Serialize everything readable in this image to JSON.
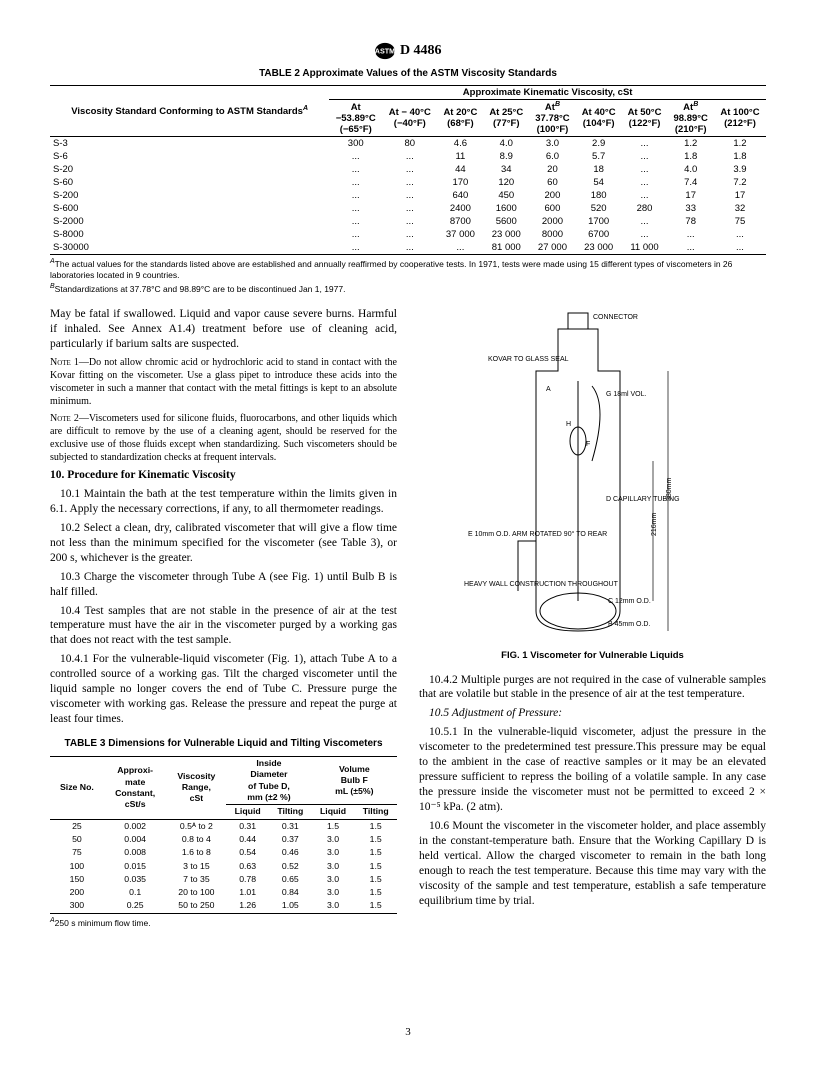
{
  "header": {
    "standard_number": "D 4486"
  },
  "table2": {
    "title": "TABLE 2  Approximate Values of the ASTM Viscosity Standards",
    "spanning_header": "Approximate Kinematic Viscosity, cSt",
    "row_header": "Viscosity Standard Conforming to ASTM Standards",
    "row_header_sup": "A",
    "columns": [
      {
        "line1": "At",
        "line2": "−53.89°C",
        "line3": "(−65°F)"
      },
      {
        "line1": "At − 40°C",
        "line2": "(−40°F)",
        "line3": ""
      },
      {
        "line1": "At 20°C",
        "line2": "(68°F)",
        "line3": ""
      },
      {
        "line1": "At 25°C",
        "line2": "(77°F)",
        "line3": ""
      },
      {
        "line1": "At",
        "sup": "B",
        "line2": "37.78°C",
        "line3": "(100°F)"
      },
      {
        "line1": "At 40°C",
        "line2": "(104°F)",
        "line3": ""
      },
      {
        "line1": "At 50°C",
        "line2": "(122°F)",
        "line3": ""
      },
      {
        "line1": "At",
        "sup": "B",
        "line2": "98.89°C",
        "line3": "(210°F)"
      },
      {
        "line1": "At 100°C",
        "line2": "(212°F)",
        "line3": ""
      }
    ],
    "rows": [
      {
        "label": "S-3",
        "cells": [
          "300",
          "80",
          "4.6",
          "4.0",
          "3.0",
          "2.9",
          "...",
          "1.2",
          "1.2"
        ]
      },
      {
        "label": "S-6",
        "cells": [
          "...",
          "...",
          "11",
          "8.9",
          "6.0",
          "5.7",
          "...",
          "1.8",
          "1.8"
        ]
      },
      {
        "label": "S-20",
        "cells": [
          "...",
          "...",
          "44",
          "34",
          "20",
          "18",
          "...",
          "4.0",
          "3.9"
        ]
      },
      {
        "label": "S-60",
        "cells": [
          "...",
          "...",
          "170",
          "120",
          "60",
          "54",
          "...",
          "7.4",
          "7.2"
        ]
      },
      {
        "label": "S-200",
        "cells": [
          "...",
          "...",
          "640",
          "450",
          "200",
          "180",
          "...",
          "17",
          "17"
        ]
      },
      {
        "label": "S-600",
        "cells": [
          "...",
          "...",
          "2400",
          "1600",
          "600",
          "520",
          "280",
          "33",
          "32"
        ]
      },
      {
        "label": "S-2000",
        "cells": [
          "...",
          "...",
          "8700",
          "5600",
          "2000",
          "1700",
          "...",
          "78",
          "75"
        ]
      },
      {
        "label": "S-8000",
        "cells": [
          "...",
          "...",
          "37 000",
          "23 000",
          "8000",
          "6700",
          "...",
          "...",
          "..."
        ]
      },
      {
        "label": "S-30000",
        "cells": [
          "...",
          "...",
          "...",
          "81 000",
          "27 000",
          "23 000",
          "11 000",
          "...",
          "..."
        ]
      }
    ],
    "footnote_a": "The actual values for the standards listed above are established and annually reaffirmed by cooperative tests. In 1971, tests were made using 15 different types of viscometers in 26 laboratories located in 9 countries.",
    "footnote_b": "Standardizations at 37.78°C and 98.89°C are to be discontinued Jan 1, 1977."
  },
  "body": {
    "p1": "May be fatal if swallowed. Liquid and vapor cause severe burns. Harmful if inhaled. See Annex A1.4) treatment before use of cleaning acid, particularly if barium salts are suspected.",
    "note1_label": "Note 1—",
    "note1": "Do not allow chromic acid or hydrochloric acid to stand in contact with the Kovar fitting on the viscometer. Use a glass pipet to introduce these acids into the viscometer in such a manner that contact with the metal fittings is kept to an absolute minimum.",
    "note2_label": "Note 2—",
    "note2": "Viscometers used for silicone fluids, fluorocarbons, and other liquids which are difficult to remove by the use of a cleaning agent, should be reserved for the exclusive use of those fluids except when standardizing. Such viscometers should be subjected to standardization checks at frequent intervals.",
    "sec10": "10.  Procedure for Kinematic Viscosity",
    "p10_1": "10.1 Maintain the bath at the test temperature within the limits given in 6.1. Apply the necessary corrections, if any, to all thermometer readings.",
    "p10_2": "10.2 Select a clean, dry, calibrated viscometer that will give a flow time not less than the minimum specified for the viscometer (see Table 3), or 200 s, whichever is the greater.",
    "p10_3": "10.3 Charge the viscometer through Tube A (see Fig. 1) until Bulb B is half filled.",
    "p10_4": "10.4 Test samples that are not stable in the presence of air at the test temperature must have the air in the viscometer purged by a working gas that does not react with the test sample.",
    "p10_4_1": "10.4.1 For the vulnerable-liquid viscometer (Fig. 1), attach Tube A to a controlled source of a working gas. Tilt the charged viscometer until the liquid sample no longer covers the end of Tube C. Pressure purge the viscometer with working gas. Release the pressure and repeat the purge at least four times.",
    "p10_4_2": "10.4.2 Multiple purges are not required in the case of vulnerable samples that are volatile but stable in the presence of air at the test temperature.",
    "p10_5_head": "10.5 Adjustment of Pressure:",
    "p10_5_1": "10.5.1 In the vulnerable-liquid viscometer, adjust the pressure in the viscometer to the predetermined test pressure.This pressure may be equal to the ambient in the case of reactive samples or it may be an elevated pressure sufficient to repress the boiling of a volatile sample. In any case the pressure inside the viscometer must not be permitted to exceed 2 × 10⁻⁵ kPa. (2 atm).",
    "p10_6": "10.6 Mount the viscometer in the viscometer holder, and place assembly in the constant-temperature bath. Ensure that the Working Capillary D is held vertical. Allow the charged viscometer to remain in the bath long enough to reach the test temperature. Because this time may vary with the viscosity of the sample and test temperature, establish a safe temperature equilibrium time by trial."
  },
  "table3": {
    "title": "TABLE 3  Dimensions for Vulnerable Liquid and Tilting Viscometers",
    "headers": {
      "size": "Size No.",
      "const": "Approxi-\nmate\nConstant,\ncSt/s",
      "range": "Viscosity\nRange,\ncSt",
      "diam": "Inside\nDiameter\nof Tube D,\nmm (±2 %)",
      "vol": "Volume\nBulb F\nmL (±5%)",
      "liquid": "Liquid",
      "tilting": "Tilting"
    },
    "rows": [
      {
        "cells": [
          "25",
          "0.002",
          "0.5ᴬ to 2",
          "0.31",
          "0.31",
          "1.5",
          "1.5"
        ]
      },
      {
        "cells": [
          "50",
          "0.004",
          "0.8 to 4",
          "0.44",
          "0.37",
          "3.0",
          "1.5"
        ]
      },
      {
        "cells": [
          "75",
          "0.008",
          "1.6 to 8",
          "0.54",
          "0.46",
          "3.0",
          "1.5"
        ]
      },
      {
        "cells": [
          "100",
          "0.015",
          "3 to 15",
          "0.63",
          "0.52",
          "3.0",
          "1.5"
        ]
      },
      {
        "cells": [
          "150",
          "0.035",
          "7 to 35",
          "0.78",
          "0.65",
          "3.0",
          "1.5"
        ]
      },
      {
        "cells": [
          "200",
          "0.1",
          "20 to 100",
          "1.01",
          "0.84",
          "3.0",
          "1.5"
        ]
      },
      {
        "cells": [
          "300",
          "0.25",
          "50 to 250",
          "1.26",
          "1.05",
          "3.0",
          "1.5"
        ]
      }
    ],
    "footnote": "250 s minimum flow time.",
    "footnote_sup": "A"
  },
  "figure": {
    "caption": "FIG. 1 Viscometer for Vulnerable Liquids",
    "labels": {
      "connector": "CONNECTOR",
      "kovar": "KOVAR TO\nGLASS SEAL",
      "a": "A",
      "g": "G\n18ml VOL.",
      "h": "H",
      "f": "F",
      "d": "D\nCAPILLARY\nTUBING",
      "e": "E\n10mm O.D.\nARM ROTATED\n90° TO REAR",
      "heavy": "HEAVY WALL\nCONSTRUCTION\nTHROUGHOUT",
      "c": "C\n12mm O.D.",
      "b": "B\n45mm O.D.",
      "dim1": "380mm",
      "dim2": "216mm"
    }
  },
  "page_number": "3"
}
